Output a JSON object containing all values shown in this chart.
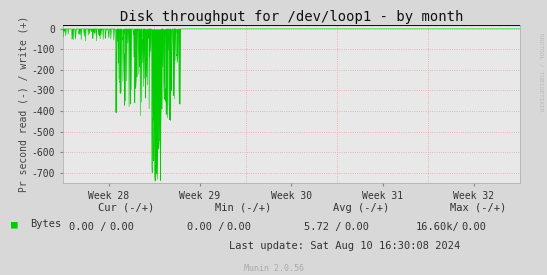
{
  "title": "Disk throughput for /dev/loop1 - by month",
  "ylabel": "Pr second read (-) / write (+)",
  "xlabel_ticks": [
    "Week 28",
    "Week 29",
    "Week 30",
    "Week 31",
    "Week 32"
  ],
  "ylim": [
    -750,
    20
  ],
  "yticks": [
    0,
    -100,
    -200,
    -300,
    -400,
    -500,
    -600,
    -700
  ],
  "bg_color": "#d8d8d8",
  "plot_bg_color": "#e8e8e8",
  "grid_color": "#e8a0a0",
  "line_color": "#00cc00",
  "border_color": "#aaaaaa",
  "right_label": "RRDTOOL / TOBIOETIKER",
  "legend_label": "Bytes",
  "legend_color": "#00cc00",
  "footer_last": "Last update: Sat Aug 10 16:30:08 2024",
  "munin_label": "Munin 2.0.56",
  "title_fontsize": 10,
  "axis_fontsize": 7,
  "tick_fontsize": 7,
  "footer_fontsize": 7.5
}
